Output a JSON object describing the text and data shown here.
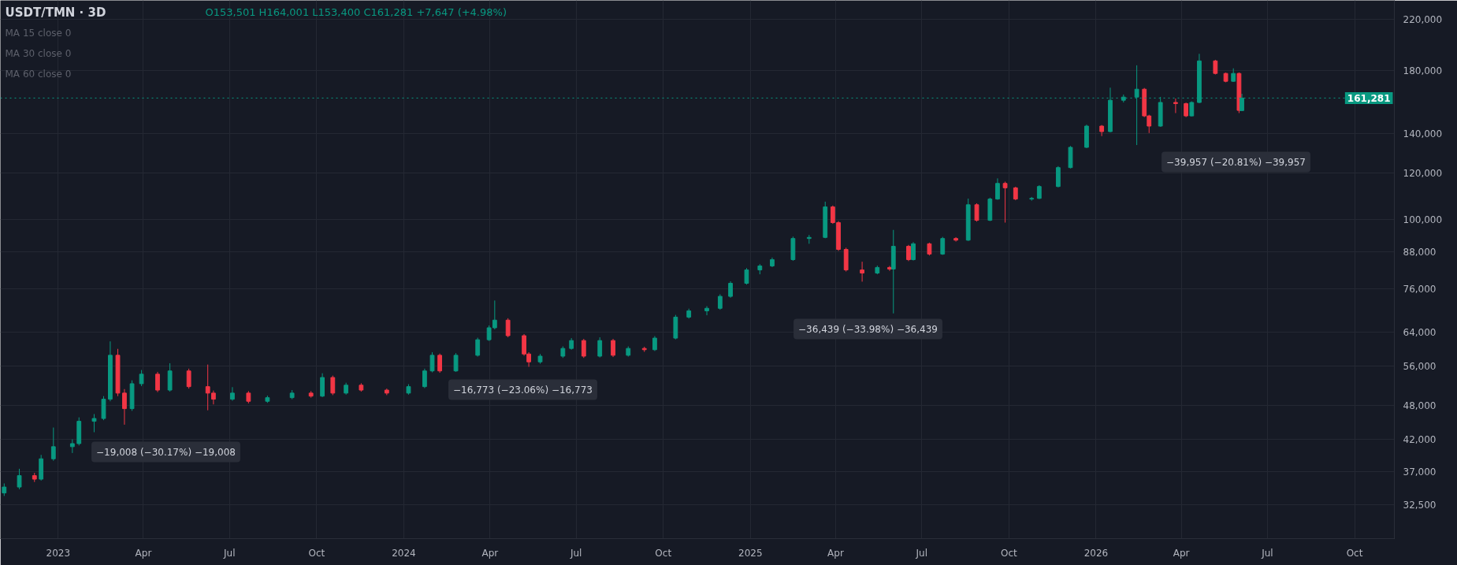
{
  "chart_data": {
    "type": "candlestick",
    "title": "USDT/TMN · 3D",
    "annotations": [
      "O153,501 H164,001 L153,400 C161,281 +7,647 (+4.98%)",
      "MA 15 close 0",
      "MA 30 close 0",
      "MA 60 close 0",
      "−19,008 (−30.17%) −19,008",
      "−16,773 (−23.06%) −16,773",
      "−36,439 (−33.98%) −36,439",
      "−39,957 (−20.81%) −39,957"
    ],
    "x": [
      "2022-11-05",
      "2022-11-21",
      "2022-12-07",
      "2022-12-14",
      "2022-12-27",
      "2023-01-16",
      "2023-01-23",
      "2023-02-08",
      "2023-02-18",
      "2023-02-25",
      "2023-03-05",
      "2023-03-12",
      "2023-03-20",
      "2023-03-30",
      "2023-04-16",
      "2023-04-29",
      "2023-05-19",
      "2023-06-08",
      "2023-06-14",
      "2023-07-04",
      "2023-07-21",
      "2023-08-10",
      "2023-09-05",
      "2023-09-25",
      "2023-10-07",
      "2023-10-18",
      "2023-11-01",
      "2023-11-17",
      "2023-12-14",
      "2024-01-06",
      "2024-01-23",
      "2024-01-31",
      "2024-02-08",
      "2024-02-25",
      "2024-03-19",
      "2024-03-31",
      "2024-04-06",
      "2024-04-20",
      "2024-05-07",
      "2024-05-12",
      "2024-05-24",
      "2024-06-17",
      "2024-06-26",
      "2024-07-09",
      "2024-07-26",
      "2024-08-09",
      "2024-08-25",
      "2024-09-11",
      "2024-09-22",
      "2024-10-14",
      "2024-10-28",
      "2024-11-16",
      "2024-11-30",
      "2024-12-11",
      "2024-12-28",
      "2025-01-11",
      "2025-01-24",
      "2025-02-15",
      "2025-03-04",
      "2025-03-21",
      "2025-03-29",
      "2025-04-04",
      "2025-04-12",
      "2025-04-29",
      "2025-05-15",
      "2025-05-28",
      "2025-06-01",
      "2025-06-17",
      "2025-06-22",
      "2025-07-09",
      "2025-07-23",
      "2025-08-06",
      "2025-08-19",
      "2025-08-28",
      "2025-09-11",
      "2025-09-19",
      "2025-09-27",
      "2025-10-08",
      "2025-10-25",
      "2025-11-02",
      "2025-11-22",
      "2025-12-05",
      "2025-12-22",
      "2026-01-07",
      "2026-01-16",
      "2026-01-30",
      "2026-02-13",
      "2026-02-21",
      "2026-02-26",
      "2026-03-10",
      "2026-03-26",
      "2026-04-06",
      "2026-04-12",
      "2026-04-20",
      "2026-05-07",
      "2026-05-18",
      "2026-05-26",
      "2026-06-01",
      "2026-06-04"
    ],
    "ohlc": [
      [
        34000,
        35300,
        33600,
        34800
      ],
      [
        34800,
        37400,
        34500,
        36400
      ],
      [
        36400,
        36800,
        35500,
        35900
      ],
      [
        35900,
        39500,
        35700,
        38900
      ],
      [
        38900,
        44000,
        38600,
        40800
      ],
      [
        40800,
        42000,
        39800,
        41300
      ],
      [
        41300,
        45800,
        41000,
        45100
      ],
      [
        45100,
        46400,
        43200,
        45600
      ],
      [
        45600,
        49800,
        45300,
        49200
      ],
      [
        49200,
        61800,
        48800,
        58500
      ],
      [
        58500,
        60000,
        49800,
        50400
      ],
      [
        50400,
        51200,
        44500,
        47400
      ],
      [
        47400,
        53000,
        47000,
        52300
      ],
      [
        52300,
        55200,
        51800,
        54300
      ],
      [
        54300,
        54800,
        50600,
        51000
      ],
      [
        51000,
        56700,
        50700,
        55000
      ],
      [
        55000,
        55500,
        51300,
        51700
      ],
      [
        51700,
        56400,
        47100,
        50400
      ],
      [
        50400,
        50900,
        48200,
        49200
      ],
      [
        49200,
        51600,
        48900,
        50400
      ],
      [
        50400,
        50800,
        48400,
        48800
      ],
      [
        48800,
        49900,
        48500,
        49500
      ],
      [
        49500,
        51000,
        49200,
        50400
      ],
      [
        50400,
        50800,
        49500,
        49800
      ],
      [
        49800,
        54500,
        49600,
        53600
      ],
      [
        53600,
        54000,
        50000,
        50400
      ],
      [
        50400,
        52500,
        50100,
        52000
      ],
      [
        52000,
        52400,
        50700,
        51000
      ],
      [
        51000,
        51300,
        50000,
        50400
      ],
      [
        50400,
        52200,
        50100,
        51700
      ],
      [
        51700,
        55500,
        51400,
        55000
      ],
      [
        55000,
        59200,
        54700,
        58500
      ],
      [
        58500,
        58900,
        54600,
        55000
      ],
      [
        55000,
        59000,
        54800,
        58500
      ],
      [
        58500,
        62700,
        58200,
        62200
      ],
      [
        62200,
        65800,
        61900,
        65200
      ],
      [
        65200,
        72600,
        64800,
        67200
      ],
      [
        67200,
        67700,
        62800,
        63200
      ],
      [
        63200,
        63600,
        58400,
        58800
      ],
      [
        58800,
        59200,
        55900,
        57000
      ],
      [
        57000,
        58800,
        56600,
        58300
      ],
      [
        58300,
        60600,
        57900,
        60100
      ],
      [
        60100,
        62600,
        59800,
        62000
      ],
      [
        62000,
        62400,
        57900,
        58300
      ],
      [
        58300,
        62800,
        58000,
        62000
      ],
      [
        62000,
        62400,
        58100,
        58500
      ],
      [
        58500,
        60600,
        58200,
        60100
      ],
      [
        60100,
        60500,
        59300,
        59800
      ],
      [
        59800,
        63100,
        59500,
        62600
      ],
      [
        62600,
        68600,
        62300,
        68000
      ],
      [
        68000,
        70300,
        67600,
        69700
      ],
      [
        69700,
        71000,
        68500,
        70400
      ],
      [
        70400,
        74400,
        70000,
        73800
      ],
      [
        73800,
        78300,
        73400,
        77700
      ],
      [
        77700,
        82500,
        77300,
        81900
      ],
      [
        81900,
        83800,
        80500,
        83200
      ],
      [
        83200,
        86000,
        82800,
        85300
      ],
      [
        85300,
        93400,
        84900,
        92700
      ],
      [
        92700,
        94000,
        90800,
        93100
      ],
      [
        93100,
        107200,
        92800,
        105000
      ],
      [
        105000,
        105600,
        98200,
        98700
      ],
      [
        98700,
        99300,
        88300,
        88800
      ],
      [
        88800,
        89400,
        81400,
        81900
      ],
      [
        81900,
        84600,
        78200,
        80900
      ],
      [
        80900,
        83300,
        80500,
        82700
      ],
      [
        82700,
        83200,
        81600,
        82200
      ],
      [
        82200,
        95900,
        69000,
        89900
      ],
      [
        89900,
        90400,
        84800,
        85300
      ],
      [
        85300,
        91400,
        85000,
        90800
      ],
      [
        90800,
        91200,
        86700,
        87200
      ],
      [
        87200,
        93300,
        86900,
        92700
      ],
      [
        92700,
        93200,
        91600,
        92100
      ],
      [
        92100,
        108500,
        91800,
        105900
      ],
      [
        105900,
        106500,
        99100,
        99600
      ],
      [
        99600,
        108900,
        99300,
        108300
      ],
      [
        108300,
        117500,
        108000,
        115200
      ],
      [
        115200,
        116000,
        98700,
        113200
      ],
      [
        113200,
        113700,
        107800,
        108300
      ],
      [
        108300,
        109200,
        107600,
        108600
      ],
      [
        108600,
        114400,
        108300,
        113800
      ],
      [
        113800,
        123300,
        113400,
        122600
      ],
      [
        122600,
        133500,
        122200,
        132800
      ],
      [
        132800,
        145200,
        132400,
        144400
      ],
      [
        144400,
        145000,
        138800,
        141300
      ],
      [
        141300,
        168000,
        140900,
        159900
      ],
      [
        159900,
        163500,
        158500,
        161900
      ],
      [
        161900,
        183500,
        134000,
        167000
      ],
      [
        167000,
        167800,
        149600,
        150300
      ],
      [
        150300,
        151000,
        140500,
        144400
      ],
      [
        144400,
        162000,
        144000,
        158500
      ],
      [
        158500,
        161000,
        152000,
        157800
      ],
      [
        157800,
        158400,
        149600,
        150300
      ],
      [
        150300,
        159200,
        150000,
        158500
      ],
      [
        158500,
        192000,
        158000,
        186700
      ],
      [
        186700,
        187500,
        177000,
        177700
      ],
      [
        177700,
        178300,
        171600,
        172300
      ],
      [
        172300,
        181300,
        171900,
        177700
      ],
      [
        177700,
        178400,
        152000,
        153600
      ],
      [
        153501,
        164001,
        153400,
        161281
      ]
    ],
    "log": true,
    "grid": true,
    "xlim": [
      "2022-11-01",
      "2026-11-12"
    ],
    "xticks": [
      {
        "value": "2023-01-01",
        "label": "2023"
      },
      {
        "value": "2023-04-01",
        "label": "Apr"
      },
      {
        "value": "2023-07-01",
        "label": "Jul"
      },
      {
        "value": "2023-10-01",
        "label": "Oct"
      },
      {
        "value": "2024-01-01",
        "label": "2024"
      },
      {
        "value": "2024-04-01",
        "label": "Apr"
      },
      {
        "value": "2024-07-01",
        "label": "Jul"
      },
      {
        "value": "2024-10-01",
        "label": "Oct"
      },
      {
        "value": "2025-01-01",
        "label": "2025"
      },
      {
        "value": "2025-04-01",
        "label": "Apr"
      },
      {
        "value": "2025-07-01",
        "label": "Jul"
      },
      {
        "value": "2025-10-01",
        "label": "Oct"
      },
      {
        "value": "2026-01-01",
        "label": "2026"
      },
      {
        "value": "2026-04-01",
        "label": "Apr"
      },
      {
        "value": "2026-07-01",
        "label": "Jul"
      },
      {
        "value": "2026-10-01",
        "label": "Oct"
      }
    ],
    "ylim": [
      28400,
      237000
    ],
    "yticks": [
      {
        "value": 32500,
        "label": "32,500"
      },
      {
        "value": 37000,
        "label": "37,000"
      },
      {
        "value": 42000,
        "label": "42,000"
      },
      {
        "value": 48000,
        "label": "48,000"
      },
      {
        "value": 56000,
        "label": "56,000"
      },
      {
        "value": 64000,
        "label": "64,000"
      },
      {
        "value": 76000,
        "label": "76,000"
      },
      {
        "value": 88000,
        "label": "88,000"
      },
      {
        "value": 100000,
        "label": "100,000"
      },
      {
        "value": 120000,
        "label": "120,000"
      },
      {
        "value": 140000,
        "label": "140,000"
      },
      {
        "value": 180000,
        "label": "180,000"
      },
      {
        "value": 220000,
        "label": "220,000"
      }
    ],
    "ref_lines": [
      {
        "axis": "y",
        "value": 161281,
        "label": "161,281",
        "color": "#089981",
        "line_style": "dotted"
      }
    ]
  }
}
